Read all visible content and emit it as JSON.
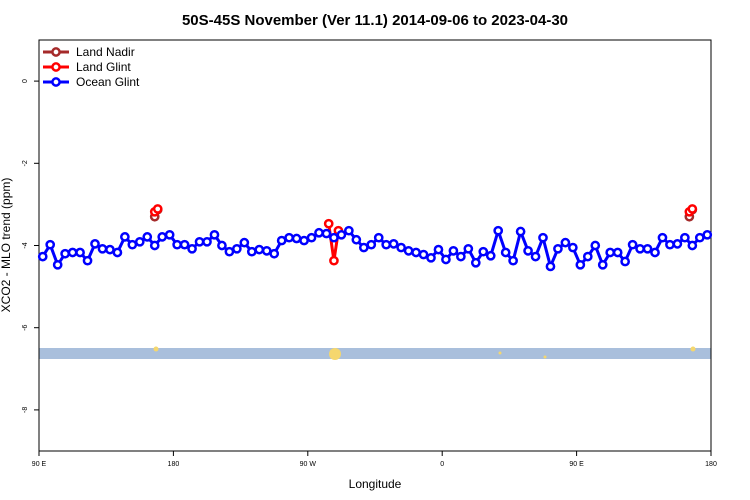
{
  "chart_data": {
    "type": "line",
    "title": "50S-45S November (Ver 11.1)   2014-09-06 to 2023-04-30",
    "x_label": "Longitude",
    "y_label": "XCO2 - MLO trend (ppm)",
    "xlim": [
      90,
      540
    ],
    "xticks": [
      {
        "value": 90,
        "label": "90 E"
      },
      {
        "value": 180,
        "label": "180"
      },
      {
        "value": 270,
        "label": "90 W"
      },
      {
        "value": 360,
        "label": "0"
      },
      {
        "value": 450,
        "label": "90 E"
      },
      {
        "value": 540,
        "label": "180"
      }
    ],
    "ylim": [
      -9,
      1
    ],
    "yticks": [
      0,
      -2,
      -4,
      -6,
      -8
    ],
    "legend": "top-left",
    "series": [
      {
        "name": "Land Nadir",
        "color": "#a52a2a",
        "x": [
          167.5,
          169.5,
          null,
          525.5,
          527.5
        ],
        "values": [
          -3.3,
          -3.13,
          null,
          -3.3,
          -3.13
        ]
      },
      {
        "name": "Land Glint",
        "color": "#ff0000",
        "x": [
          167.5,
          169.5,
          null,
          284,
          287.5,
          290.5,
          null,
          525.5,
          527.5
        ],
        "values": [
          -3.18,
          -3.11,
          null,
          -3.47,
          -4.37,
          -3.64,
          null,
          -3.18,
          -3.11
        ]
      },
      {
        "name": "Ocean Glint",
        "color": "#0000ff",
        "x": [
          92.5,
          97.5,
          102.5,
          107.5,
          112.5,
          117.5,
          122.5,
          127.5,
          132.5,
          137.5,
          142.5,
          147.5,
          152.5,
          157.5,
          162.5,
          167.5,
          172.5,
          177.5,
          182.5,
          187.5,
          192.5,
          197.5,
          202.5,
          207.5,
          212.5,
          217.5,
          222.5,
          227.5,
          232.5,
          237.5,
          242.5,
          247.5,
          252.5,
          257.5,
          262.5,
          267.5,
          272.5,
          277.5,
          282.5,
          287.5,
          292.5,
          297.5,
          302.5,
          307.5,
          312.5,
          317.5,
          322.5,
          327.5,
          332.5,
          337.5,
          342.5,
          347.5,
          352.5,
          357.5,
          362.5,
          367.5,
          372.5,
          377.5,
          382.5,
          387.5,
          392.5,
          397.5,
          402.5,
          407.5,
          412.5,
          417.5,
          422.5,
          427.5,
          432.5,
          437.5,
          442.5,
          447.5,
          452.5,
          457.5,
          462.5,
          467.5,
          472.5,
          477.5,
          482.5,
          487.5,
          492.5,
          497.5,
          502.5,
          507.5,
          512.5,
          517.5,
          522.5,
          527.5,
          532.5,
          537.5
        ],
        "values": [
          -4.27,
          -3.98,
          -4.47,
          -4.2,
          -4.17,
          -4.17,
          -4.37,
          -3.96,
          -4.08,
          -4.1,
          -4.17,
          -3.79,
          -3.98,
          -3.91,
          -3.79,
          -4.0,
          -3.79,
          -3.74,
          -3.98,
          -3.98,
          -4.08,
          -3.91,
          -3.91,
          -3.74,
          -4.0,
          -4.15,
          -4.08,
          -3.93,
          -4.15,
          -4.1,
          -4.13,
          -4.2,
          -3.88,
          -3.81,
          -3.83,
          -3.88,
          -3.81,
          -3.69,
          -3.71,
          -3.81,
          -3.74,
          -3.64,
          -3.86,
          -4.05,
          -3.98,
          -3.81,
          -3.98,
          -3.96,
          -4.05,
          -4.13,
          -4.17,
          -4.22,
          -4.3,
          -4.1,
          -4.34,
          -4.13,
          -4.27,
          -4.08,
          -4.42,
          -4.15,
          -4.25,
          -3.64,
          -4.17,
          -4.37,
          -3.66,
          -4.13,
          -4.27,
          -3.81,
          -4.51,
          -4.08,
          -3.93,
          -4.05,
          -4.47,
          -4.27,
          -4.0,
          -4.47,
          -4.17,
          -4.17,
          -4.39,
          -3.98,
          -4.08,
          -4.08,
          -4.17,
          -3.81,
          -3.98,
          -3.96,
          -3.81,
          -4.0,
          -3.81,
          -3.74
        ]
      }
    ]
  }
}
